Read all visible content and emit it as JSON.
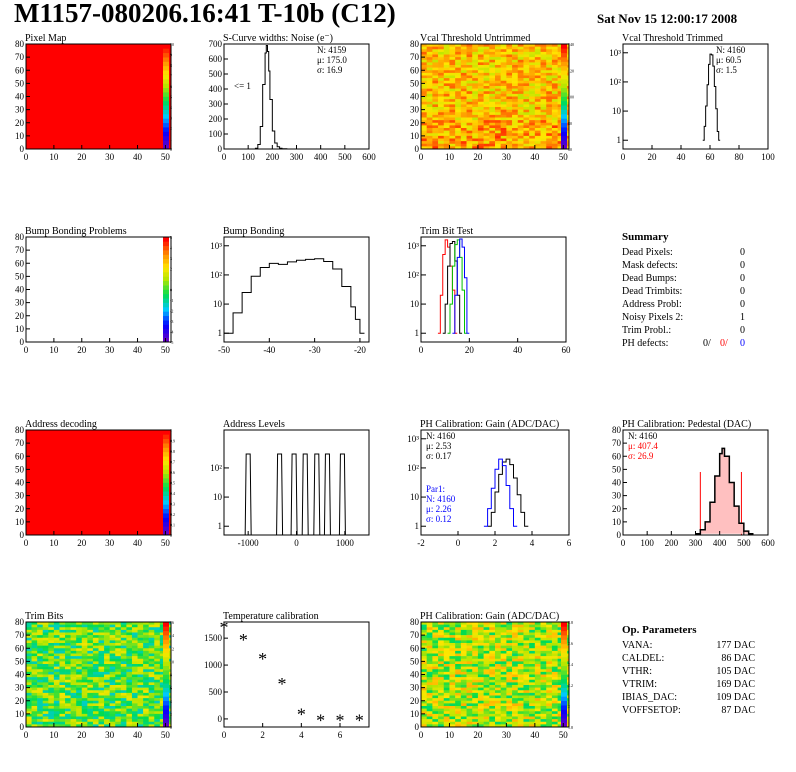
{
  "header": {
    "title": "M1157-080206.16:41 T-10b (C12)",
    "date": "Sat Nov 15 12:00:17 2008"
  },
  "summary": {
    "title": "Summary",
    "rows": [
      {
        "label": "Dead Pixels:",
        "value": "0"
      },
      {
        "label": "Mask defects:",
        "value": "0"
      },
      {
        "label": "Dead Bumps:",
        "value": "0"
      },
      {
        "label": "Dead Trimbits:",
        "value": "0"
      },
      {
        "label": "Address Probl:",
        "value": "0"
      },
      {
        "label": "Noisy Pixels 2:",
        "value": "1"
      },
      {
        "label": "Trim Probl.:",
        "value": "0"
      }
    ],
    "ph_defects": {
      "label": "PH defects:",
      "v1": "0/",
      "v2": "0/",
      "v3": "0"
    }
  },
  "op_parameters": {
    "title": "Op. Parameters",
    "rows": [
      {
        "label": "VANA:",
        "value": "177 DAC"
      },
      {
        "label": "CALDEL:",
        "value": "86 DAC"
      },
      {
        "label": "VTHR:",
        "value": "105 DAC"
      },
      {
        "label": "VTRIM:",
        "value": "169 DAC"
      },
      {
        "label": "IBIAS_DAC:",
        "value": "109 DAC"
      },
      {
        "label": "VOFFSETOP:",
        "value": "87 DAC"
      }
    ]
  },
  "colors": {
    "red": "#ff0000",
    "blue": "#0000ff",
    "green": "#00c000",
    "black": "#000000",
    "pink_fill": "#ffc0c0"
  },
  "chart_data": [
    {
      "id": "pixel-map",
      "type": "heatmap",
      "title": "Pixel Map",
      "pattern": "uniform-max",
      "xlim": [
        0,
        52
      ],
      "ylim": [
        0,
        80
      ],
      "xticks": [
        "0",
        "10",
        "20",
        "30",
        "40",
        "50"
      ],
      "yticks": [
        "0",
        "10",
        "20",
        "30",
        "40",
        "50",
        "60",
        "70",
        "80"
      ],
      "zticks": [
        "0",
        "1",
        "2",
        "3",
        "4",
        "5",
        "6",
        "7",
        "8",
        "9",
        "10"
      ]
    },
    {
      "id": "scurve-noise",
      "type": "line",
      "title": "S-Curve widths: Noise (e⁻)",
      "xlim": [
        0,
        600
      ],
      "ylim": [
        0,
        700
      ],
      "xticks": [
        "0",
        "100",
        "200",
        "300",
        "400",
        "500",
        "600"
      ],
      "yticks": [
        "0",
        "100",
        "200",
        "300",
        "400",
        "500",
        "600",
        "700"
      ],
      "stats": [
        "N: 4159",
        "μ: 175.0",
        "σ: 16.9"
      ],
      "annotation": "<= 1",
      "x": [
        120,
        130,
        140,
        150,
        160,
        170,
        175,
        180,
        185,
        190,
        200,
        210,
        220,
        230,
        240,
        260
      ],
      "y": [
        0,
        5,
        30,
        150,
        430,
        640,
        690,
        650,
        520,
        330,
        120,
        40,
        15,
        5,
        2,
        0
      ]
    },
    {
      "id": "vcal-untrimmed",
      "type": "heatmap",
      "title": "Vcal Threshold Untrimmed",
      "pattern": "noise-high",
      "xlim": [
        0,
        52
      ],
      "ylim": [
        0,
        80
      ],
      "xticks": [
        "0",
        "10",
        "20",
        "30",
        "40",
        "50"
      ],
      "yticks": [
        "0",
        "10",
        "20",
        "30",
        "40",
        "50",
        "60",
        "70",
        "80"
      ],
      "zticks": [
        "60",
        "80",
        "100",
        "120",
        "140"
      ]
    },
    {
      "id": "vcal-trimmed",
      "type": "line",
      "title": "Vcal Threshold Trimmed",
      "log_y": true,
      "xlim": [
        0,
        100
      ],
      "ylim": [
        0.5,
        2000
      ],
      "xticks": [
        "0",
        "20",
        "40",
        "60",
        "80",
        "100"
      ],
      "yticks": [
        "1",
        "10",
        "10²",
        "10³"
      ],
      "stats": [
        "N: 4160",
        "μ: 60.5",
        "σ:  1.5"
      ],
      "x": [
        55,
        56,
        57,
        58,
        59,
        60,
        61,
        62,
        63,
        64,
        65,
        66
      ],
      "y": [
        1,
        3,
        15,
        80,
        400,
        900,
        850,
        350,
        70,
        12,
        2,
        1
      ]
    },
    {
      "id": "bump-problems",
      "type": "heatmap",
      "title": "Bump Bonding Problems",
      "pattern": "empty",
      "xlim": [
        0,
        52
      ],
      "ylim": [
        0,
        80
      ],
      "xticks": [
        "0",
        "10",
        "20",
        "30",
        "40",
        "50"
      ],
      "yticks": [
        "0",
        "10",
        "20",
        "30",
        "40",
        "50",
        "60",
        "70",
        "80"
      ],
      "zticks": [
        "-5",
        "-4",
        "-3",
        "-2",
        "-1",
        "0",
        "1",
        "2",
        "3",
        "4",
        "5"
      ]
    },
    {
      "id": "bump-bonding",
      "type": "line",
      "title": "Bump Bonding",
      "log_y": true,
      "xlim": [
        -50,
        -18
      ],
      "ylim": [
        0.5,
        2000
      ],
      "xticks": [
        "-50",
        "-40",
        "-30",
        "-20"
      ],
      "yticks": [
        "1",
        "10",
        "10²",
        "10³"
      ],
      "x": [
        -50,
        -48,
        -46,
        -44,
        -42,
        -40,
        -38,
        -36,
        -34,
        -32,
        -30,
        -28,
        -26,
        -24,
        -22,
        -21,
        -20
      ],
      "y": [
        1,
        5,
        25,
        90,
        180,
        250,
        230,
        280,
        320,
        340,
        360,
        290,
        160,
        40,
        8,
        3,
        1
      ]
    },
    {
      "id": "trim-bit-test",
      "type": "line",
      "title": "Trim Bit Test",
      "log_y": true,
      "xlim": [
        0,
        60
      ],
      "ylim": [
        0.5,
        2000
      ],
      "xticks": [
        "0",
        "20",
        "40",
        "60"
      ],
      "yticks": [
        "1",
        "10",
        "10²",
        "10³"
      ],
      "series": [
        {
          "color": "red",
          "x": [
            7,
            8,
            9,
            10,
            11,
            12,
            13,
            14
          ],
          "y": [
            1,
            20,
            500,
            1600,
            900,
            200,
            30,
            1
          ]
        },
        {
          "color": "black",
          "x": [
            9,
            10,
            11,
            12,
            13,
            14,
            15,
            16
          ],
          "y": [
            1,
            10,
            200,
            1200,
            1400,
            300,
            20,
            1
          ]
        },
        {
          "color": "green",
          "x": [
            11,
            12,
            13,
            14,
            15,
            16,
            17,
            18
          ],
          "y": [
            1,
            10,
            200,
            1100,
            1600,
            400,
            30,
            1
          ]
        },
        {
          "color": "blue",
          "x": [
            13,
            14,
            15,
            16,
            17,
            18,
            19
          ],
          "y": [
            1,
            20,
            400,
            1700,
            900,
            80,
            1
          ]
        }
      ]
    },
    {
      "id": "address-decoding",
      "type": "heatmap",
      "title": "Address decoding",
      "pattern": "uniform-max",
      "xlim": [
        0,
        52
      ],
      "ylim": [
        0,
        80
      ],
      "xticks": [
        "0",
        "10",
        "20",
        "30",
        "40",
        "50"
      ],
      "yticks": [
        "0",
        "10",
        "20",
        "30",
        "40",
        "50",
        "60",
        "70",
        "80"
      ],
      "zticks": [
        "0",
        "0.1",
        "0.2",
        "0.3",
        "0.4",
        "0.5",
        "0.6",
        "0.7",
        "0.8",
        "0.9",
        "1"
      ]
    },
    {
      "id": "address-levels",
      "type": "line",
      "title": "Address Levels",
      "log_y": true,
      "xlim": [
        -1500,
        1500
      ],
      "ylim": [
        0.5,
        2000
      ],
      "xticks": [
        "-1000",
        "0",
        "1000"
      ],
      "yticks": [
        "1",
        "10",
        "10²"
      ],
      "peaks": [
        -1000,
        -350,
        -50,
        180,
        420,
        640,
        950
      ]
    },
    {
      "id": "ph-gain",
      "type": "line",
      "title": "PH Calibration: Gain (ADC/DAC)",
      "log_y": true,
      "xlim": [
        -2,
        6
      ],
      "ylim": [
        0.5,
        2000
      ],
      "xticks": [
        "-2",
        "0",
        "2",
        "4",
        "6"
      ],
      "yticks": [
        "1",
        "10",
        "10²",
        "10³"
      ],
      "stats": [
        "N: 4160",
        "μ: 2.53",
        "σ: 0.17"
      ],
      "stats2": [
        "Par1:",
        "N: 4160",
        "μ: 2.26",
        "σ: 0.12"
      ],
      "series": [
        {
          "color": "black",
          "x": [
            1.6,
            1.8,
            2.0,
            2.2,
            2.4,
            2.6,
            2.8,
            3.0,
            3.2,
            3.4,
            3.6
          ],
          "y": [
            1,
            3,
            15,
            60,
            160,
            200,
            130,
            45,
            12,
            3,
            1
          ]
        },
        {
          "color": "blue",
          "x": [
            1.4,
            1.6,
            1.8,
            2.0,
            2.2,
            2.4,
            2.6,
            2.8,
            3.0
          ],
          "y": [
            1,
            4,
            20,
            90,
            200,
            120,
            25,
            4,
            1
          ]
        }
      ]
    },
    {
      "id": "ph-pedestal",
      "type": "line",
      "title": "PH Calibration: Pedestal (DAC)",
      "xlim": [
        0,
        600
      ],
      "ylim": [
        0,
        80
      ],
      "xticks": [
        "0",
        "100",
        "200",
        "300",
        "400",
        "500",
        "600"
      ],
      "yticks": [
        "0",
        "10",
        "20",
        "30",
        "40",
        "50",
        "60",
        "70",
        "80"
      ],
      "stats": [
        "N: 4160"
      ],
      "stats_red": [
        "μ: 407.4",
        "σ: 26.9"
      ],
      "cut_lines": [
        320,
        490
      ],
      "x": [
        300,
        320,
        340,
        360,
        380,
        400,
        410,
        420,
        440,
        460,
        480,
        500,
        520
      ],
      "y": [
        1,
        4,
        10,
        25,
        45,
        62,
        66,
        60,
        40,
        22,
        9,
        3,
        1
      ]
    },
    {
      "id": "trim-bits",
      "type": "heatmap",
      "title": "Trim Bits",
      "pattern": "noise-mid",
      "xlim": [
        0,
        52
      ],
      "ylim": [
        0,
        80
      ],
      "xticks": [
        "0",
        "10",
        "20",
        "30",
        "40",
        "50"
      ],
      "yticks": [
        "0",
        "10",
        "20",
        "30",
        "40",
        "50",
        "60",
        "70",
        "80"
      ],
      "zticks": [
        "0",
        "2",
        "4",
        "6",
        "8",
        "10",
        "12",
        "14",
        "16"
      ]
    },
    {
      "id": "temperature-calibration",
      "type": "scatter",
      "title": "Temperature calibration",
      "xlim": [
        0,
        7.5
      ],
      "ylim": [
        -150,
        1800
      ],
      "xticks": [
        "0",
        "2",
        "4",
        "6"
      ],
      "yticks": [
        "0",
        "500",
        "1000",
        "1500"
      ],
      "x": [
        0,
        1,
        2,
        3,
        4,
        5,
        6,
        7
      ],
      "y": [
        1680,
        1450,
        1090,
        630,
        60,
        -50,
        -50,
        -50
      ]
    },
    {
      "id": "ph-gain-map",
      "type": "heatmap",
      "title": "PH Calibration: Gain (ADC/DAC)",
      "pattern": "noise-gain",
      "xlim": [
        0,
        52
      ],
      "ylim": [
        0,
        80
      ],
      "xticks": [
        "0",
        "10",
        "20",
        "30",
        "40",
        "50"
      ],
      "yticks": [
        "0",
        "10",
        "20",
        "30",
        "40",
        "50",
        "60",
        "70",
        "80"
      ],
      "zticks": [
        "1.8",
        "2",
        "2.2",
        "2.4",
        "2.6",
        "2.8"
      ]
    }
  ]
}
